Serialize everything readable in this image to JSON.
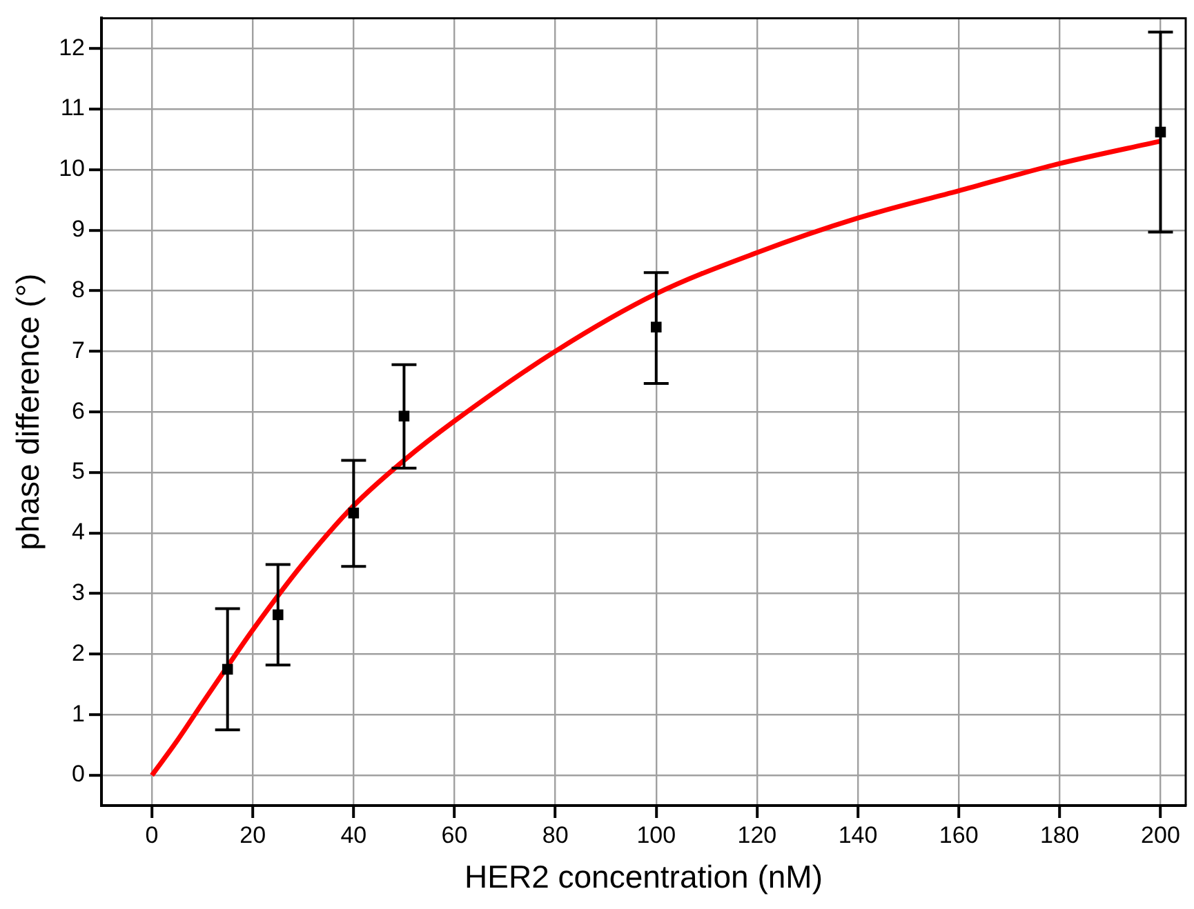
{
  "chart_data": {
    "type": "scatter",
    "xlabel": "HER2 concentration (nM)",
    "ylabel": "phase difference (°)",
    "xlim": [
      -10,
      205
    ],
    "xticks": [
      0,
      20,
      40,
      60,
      80,
      100,
      120,
      140,
      160,
      180,
      200
    ],
    "ylim": [
      -0.5,
      12.5
    ],
    "yticks": [
      0,
      1,
      2,
      3,
      4,
      5,
      6,
      7,
      8,
      9,
      10,
      11,
      12
    ],
    "grid": true,
    "legend": false,
    "series": [
      {
        "color": "#000000",
        "marker": "square",
        "x": [
          15,
          25,
          40,
          50,
          100,
          200
        ],
        "values": [
          1.75,
          2.65,
          4.33,
          5.93,
          7.4,
          10.62
        ],
        "errors": [
          [
            0.75,
            2.75
          ],
          [
            1.82,
            3.48
          ],
          [
            3.45,
            5.2
          ],
          [
            5.07,
            6.78
          ],
          [
            6.47,
            8.3
          ],
          [
            8.97,
            12.27
          ]
        ]
      },
      {
        "type": "line",
        "color": "#ff0000",
        "marker": "none",
        "line_style": "solid",
        "x": [
          0,
          5,
          10,
          15,
          20,
          30,
          40,
          50,
          60,
          80,
          100,
          120,
          140,
          160,
          180,
          200
        ],
        "values": [
          0,
          0.57,
          1.19,
          1.8,
          2.4,
          3.5,
          4.45,
          5.2,
          5.85,
          7.0,
          7.95,
          8.63,
          9.2,
          9.65,
          10.1,
          10.47
        ]
      }
    ]
  }
}
